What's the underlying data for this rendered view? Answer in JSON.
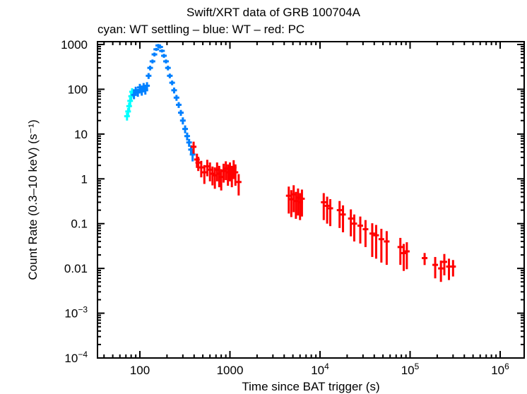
{
  "chart_data": {
    "type": "scatter",
    "title": "Swift/XRT data of GRB 100704A",
    "subtitle": "cyan: WT settling – blue: WT – red: PC",
    "xlabel": "Time since BAT trigger (s)",
    "ylabel": "Count Rate (0.3–10 keV) (s⁻¹)",
    "xscale": "log",
    "yscale": "log",
    "xlim": [
      35,
      2000000
    ],
    "ylim": [
      0.0001,
      1100
    ],
    "grid": false,
    "x_ticks": [
      {
        "value": 100,
        "label": "100",
        "exp": ""
      },
      {
        "value": 1000,
        "label": "1000",
        "exp": ""
      },
      {
        "value": 10000,
        "label": "10",
        "exp": "4"
      },
      {
        "value": 100000,
        "label": "10",
        "exp": "5"
      },
      {
        "value": 1000000,
        "label": "10",
        "exp": "6"
      }
    ],
    "y_ticks": [
      {
        "value": 1000,
        "label": "1000",
        "exp": ""
      },
      {
        "value": 100,
        "label": "100",
        "exp": ""
      },
      {
        "value": 10,
        "label": "10",
        "exp": ""
      },
      {
        "value": 1,
        "label": "1",
        "exp": ""
      },
      {
        "value": 0.1,
        "label": "0.1",
        "exp": ""
      },
      {
        "value": 0.01,
        "label": "0.01",
        "exp": ""
      },
      {
        "value": 0.001,
        "label": "10",
        "exp": "−3"
      },
      {
        "value": 0.0001,
        "label": "10",
        "exp": "−4"
      }
    ],
    "series": [
      {
        "name": "WT settling",
        "color": "#00ffff",
        "points": [
          [
            72,
            25,
            0.2
          ],
          [
            74,
            32,
            0.2
          ],
          [
            76,
            42,
            0.2
          ],
          [
            78,
            55,
            0.2
          ],
          [
            80,
            70,
            0.2
          ],
          [
            82,
            88,
            0.2
          ]
        ]
      },
      {
        "name": "WT",
        "color": "#0080ff",
        "points": [
          [
            86,
            75,
            0.2
          ],
          [
            90,
            95,
            0.2
          ],
          [
            95,
            85,
            0.2
          ],
          [
            100,
            110,
            0.2
          ],
          [
            105,
            90,
            0.2
          ],
          [
            110,
            115,
            0.2
          ],
          [
            115,
            95,
            0.2
          ],
          [
            120,
            120,
            0.2
          ],
          [
            125,
            200,
            0.15
          ],
          [
            130,
            300,
            0.12
          ],
          [
            138,
            420,
            0.1
          ],
          [
            145,
            600,
            0.1
          ],
          [
            152,
            780,
            0.08
          ],
          [
            160,
            950,
            0.08
          ],
          [
            168,
            880,
            0.08
          ],
          [
            176,
            720,
            0.08
          ],
          [
            185,
            560,
            0.1
          ],
          [
            195,
            420,
            0.1
          ],
          [
            205,
            300,
            0.12
          ],
          [
            215,
            200,
            0.12
          ],
          [
            228,
            140,
            0.12
          ],
          [
            240,
            95,
            0.15
          ],
          [
            255,
            65,
            0.15
          ],
          [
            270,
            45,
            0.15
          ],
          [
            285,
            30,
            0.15
          ],
          [
            300,
            20,
            0.18
          ],
          [
            318,
            13,
            0.2
          ],
          [
            335,
            9,
            0.2
          ],
          [
            352,
            6.5,
            0.2
          ],
          [
            370,
            4.5,
            0.25
          ],
          [
            385,
            3.5,
            0.3
          ]
        ]
      },
      {
        "name": "PC",
        "color": "#ff0000",
        "points": [
          [
            395,
            5.2,
            0.3
          ],
          [
            430,
            2.7,
            0.35
          ],
          [
            445,
            2.3,
            0.35
          ],
          [
            480,
            1.8,
            0.4
          ],
          [
            520,
            1.4,
            0.45
          ],
          [
            560,
            1.9,
            0.4
          ],
          [
            600,
            1.6,
            0.45
          ],
          [
            640,
            1.3,
            0.45
          ],
          [
            680,
            1.2,
            0.5
          ],
          [
            720,
            1.6,
            0.45
          ],
          [
            760,
            1.3,
            0.5
          ],
          [
            800,
            1.1,
            0.5
          ],
          [
            850,
            1.5,
            0.45
          ],
          [
            900,
            1.7,
            0.45
          ],
          [
            950,
            1.4,
            0.5
          ],
          [
            1000,
            1.6,
            0.45
          ],
          [
            1050,
            1.3,
            0.5
          ],
          [
            1100,
            1.8,
            0.45
          ],
          [
            1150,
            1.4,
            0.5
          ],
          [
            1250,
            0.85,
            0.5
          ],
          [
            4500,
            0.42,
            0.6
          ],
          [
            4800,
            0.35,
            0.6
          ],
          [
            5100,
            0.45,
            0.6
          ],
          [
            5400,
            0.32,
            0.6
          ],
          [
            5700,
            0.38,
            0.6
          ],
          [
            6000,
            0.3,
            0.6
          ],
          [
            6300,
            0.36,
            0.6
          ],
          [
            11000,
            0.3,
            0.6
          ],
          [
            12000,
            0.25,
            0.6
          ],
          [
            13000,
            0.22,
            0.6
          ],
          [
            16500,
            0.2,
            0.6
          ],
          [
            18000,
            0.16,
            0.6
          ],
          [
            22000,
            0.13,
            0.6
          ],
          [
            24000,
            0.1,
            0.6
          ],
          [
            28000,
            0.09,
            0.6
          ],
          [
            32000,
            0.075,
            0.6
          ],
          [
            38000,
            0.06,
            0.7
          ],
          [
            42000,
            0.055,
            0.7
          ],
          [
            48000,
            0.045,
            0.7
          ],
          [
            55000,
            0.04,
            0.7
          ],
          [
            78000,
            0.03,
            0.6
          ],
          [
            85000,
            0.022,
            0.6
          ],
          [
            92000,
            0.024,
            0.6
          ],
          [
            145000,
            0.017,
            0.3
          ],
          [
            190000,
            0.012,
            0.5
          ],
          [
            220000,
            0.01,
            0.5
          ],
          [
            240000,
            0.014,
            0.5
          ],
          [
            270000,
            0.011,
            0.5
          ],
          [
            300000,
            0.011,
            0.4
          ]
        ]
      }
    ]
  }
}
